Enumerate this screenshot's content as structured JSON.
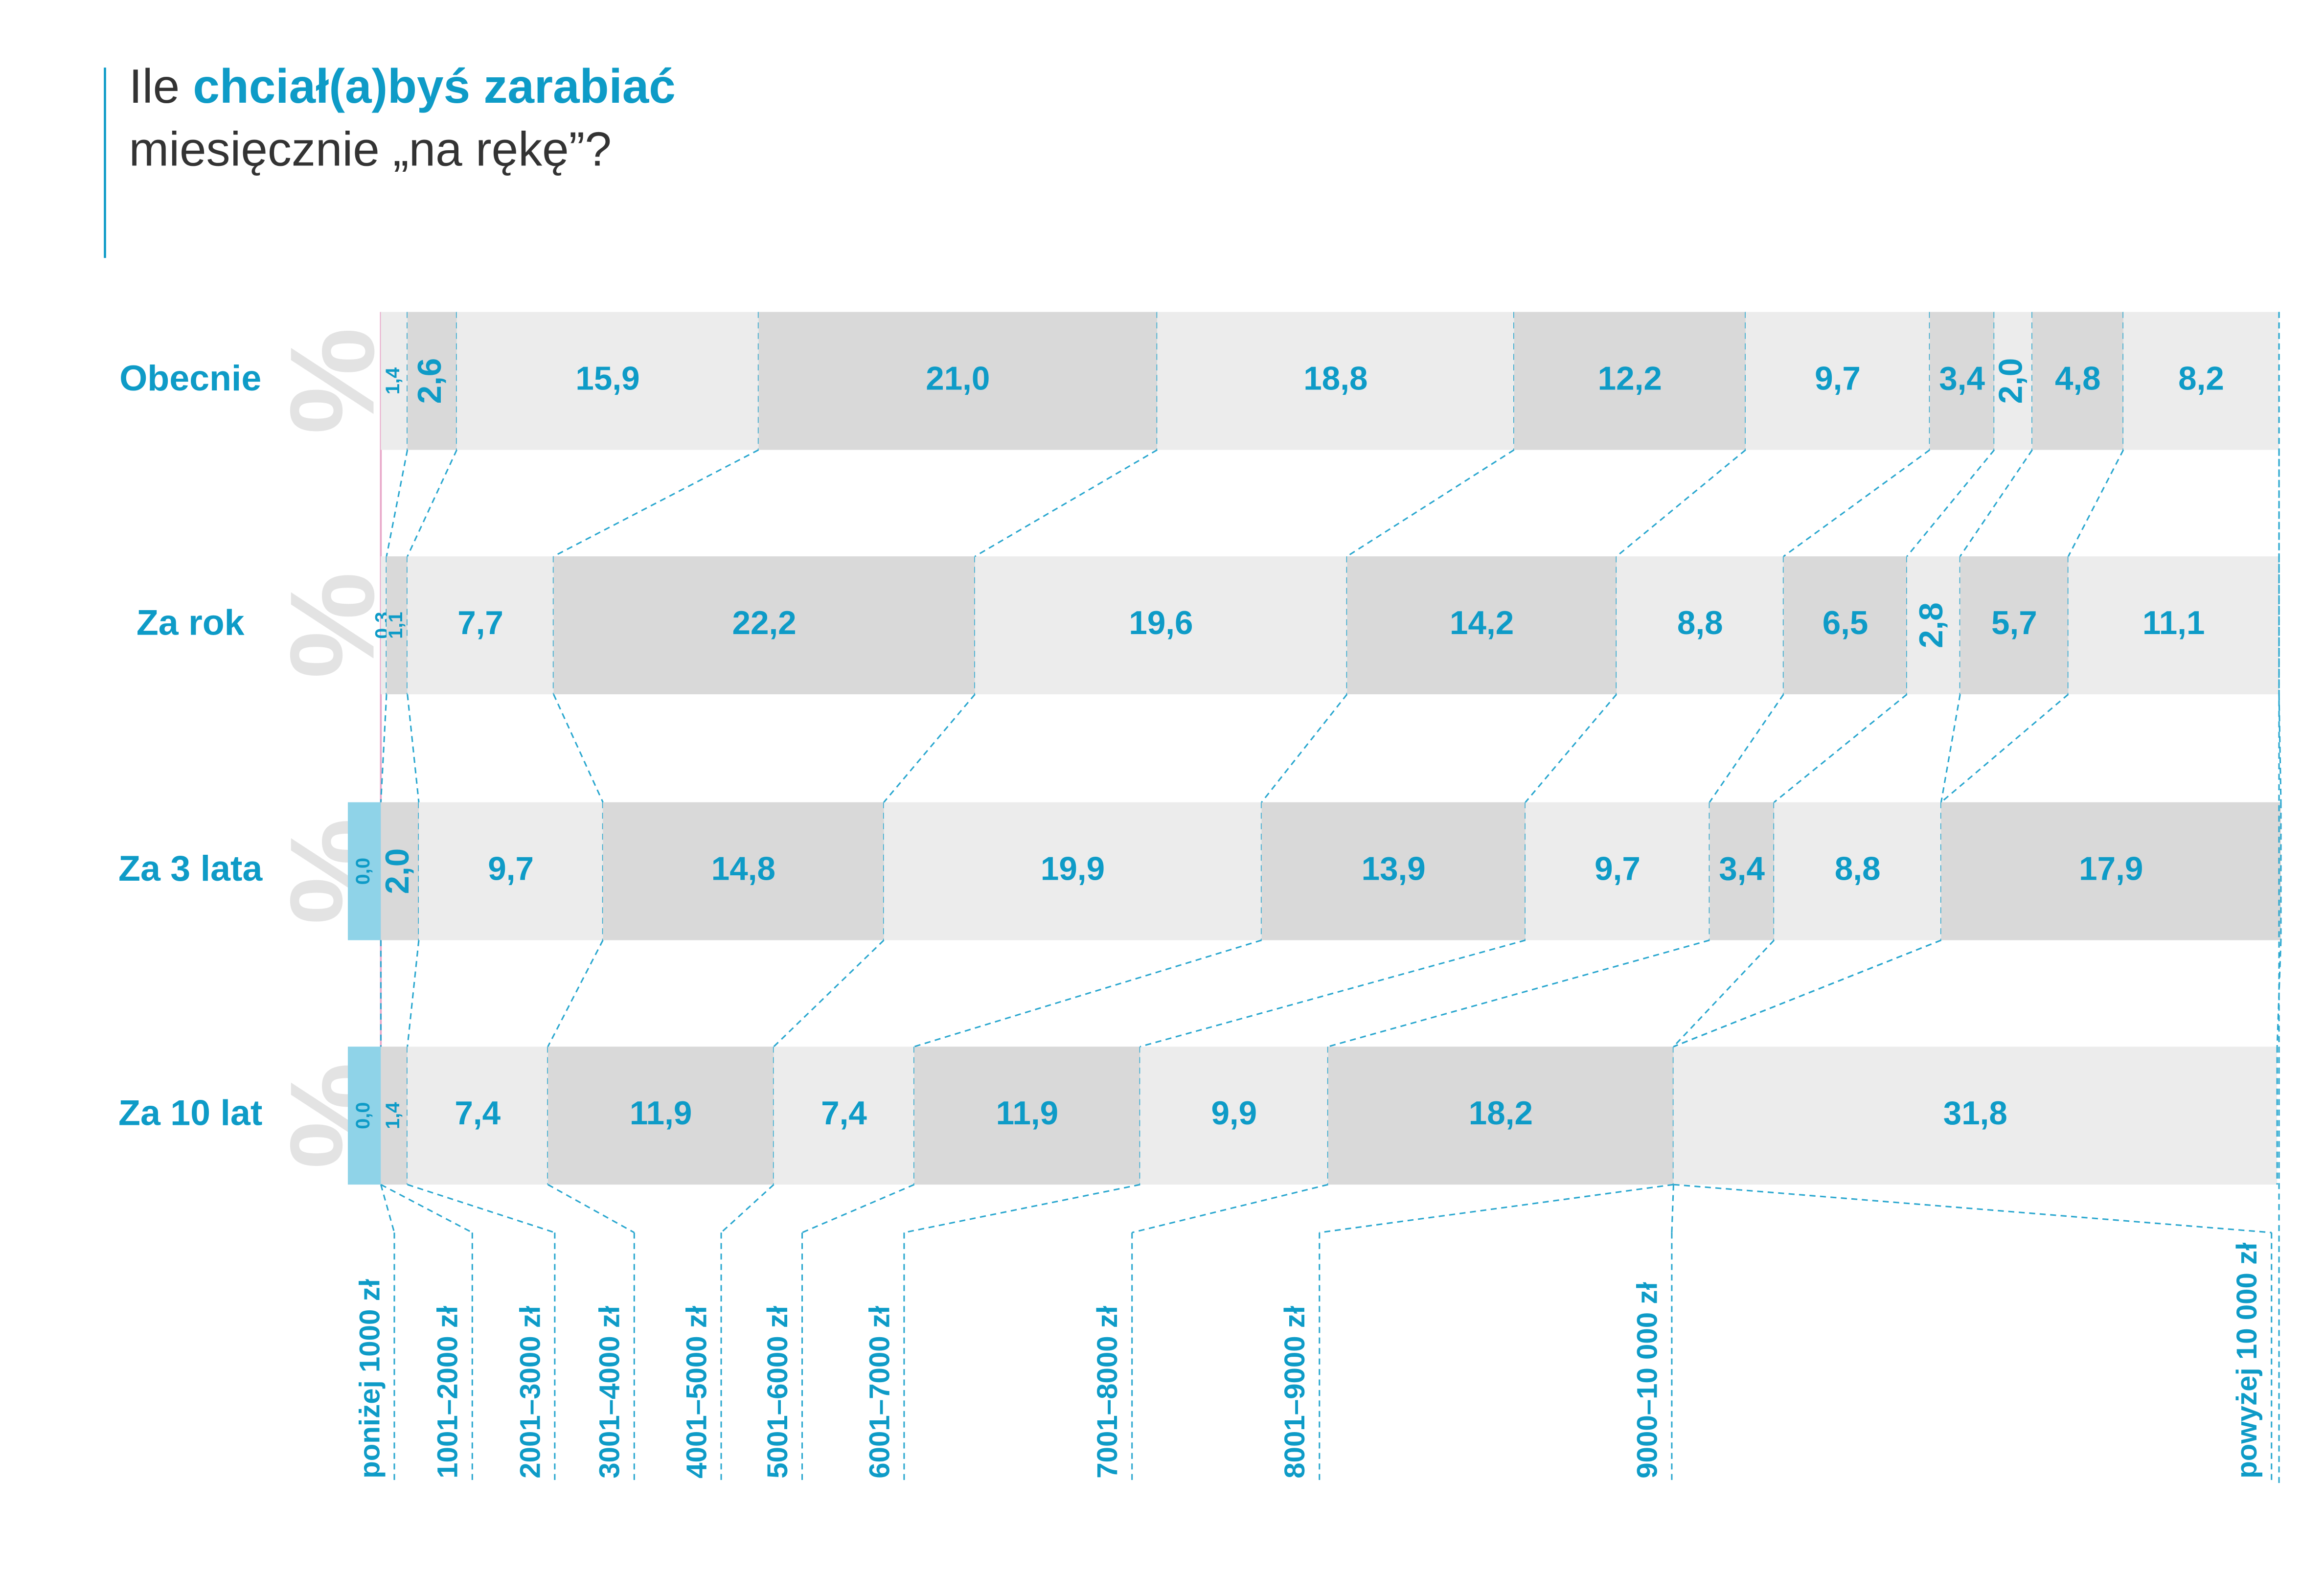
{
  "chart_data": {
    "type": "stacked_bar_100",
    "title_parts": [
      "Ile",
      "chciał(a)byś zarabiać",
      "miesięcznie „na rękę”?"
    ],
    "unit": "%",
    "categories": [
      "poniżej 1000 zł",
      "1001–2000 zł",
      "2001–3000 zł",
      "3001–4000 zł",
      "4001–5000 zł",
      "5001–6000 zł",
      "6001–7000 zł",
      "7001–8000 zł",
      "8001–9000 zł",
      "9000–10 000 zł",
      "powyżej 10 000 zł"
    ],
    "series": [
      {
        "name": "Obecnie",
        "color": "#0e9bc7",
        "values": [
          1.4,
          2.6,
          15.9,
          21.0,
          18.8,
          12.2,
          9.7,
          3.4,
          2.0,
          4.8,
          8.2
        ],
        "value_labels": [
          "1,4",
          "2,6",
          "15,9",
          "21,0",
          "18,8",
          "12,2",
          "9,7",
          "3,4",
          "2,0",
          "4,8",
          "8,2"
        ]
      },
      {
        "name": "Za rok",
        "color": "#0e9bc7",
        "values": [
          0.3,
          1.1,
          7.7,
          22.2,
          19.6,
          14.2,
          8.8,
          6.5,
          2.8,
          5.7,
          11.1
        ],
        "value_labels": [
          "0,3",
          "1,1",
          "7,7",
          "22,2",
          "19,6",
          "14,2",
          "8,8",
          "6,5",
          "2,8",
          "5,7",
          "11,1"
        ]
      },
      {
        "name": "Za 3 lata",
        "color": "#0e9bc7",
        "values": [
          0.0,
          2.0,
          9.7,
          14.8,
          19.9,
          13.9,
          9.7,
          3.4,
          8.8,
          null,
          17.9
        ],
        "value_labels": [
          "0,0",
          "2,0",
          "9,7",
          "14,8",
          "19,9",
          "13,9",
          "9,7",
          "3,4",
          "8,8",
          null,
          "17,9"
        ]
      },
      {
        "name": "Za 10 lat",
        "color": "#0e9bc7",
        "values": [
          0.0,
          1.4,
          7.4,
          11.9,
          7.4,
          11.9,
          9.9,
          18.2,
          null,
          null,
          31.8
        ],
        "value_labels": [
          "0,0",
          "1,4",
          "7,4",
          "11,9",
          "7,4",
          "11,9",
          "9,9",
          "18,2",
          null,
          null,
          "31,8"
        ]
      }
    ]
  }
}
